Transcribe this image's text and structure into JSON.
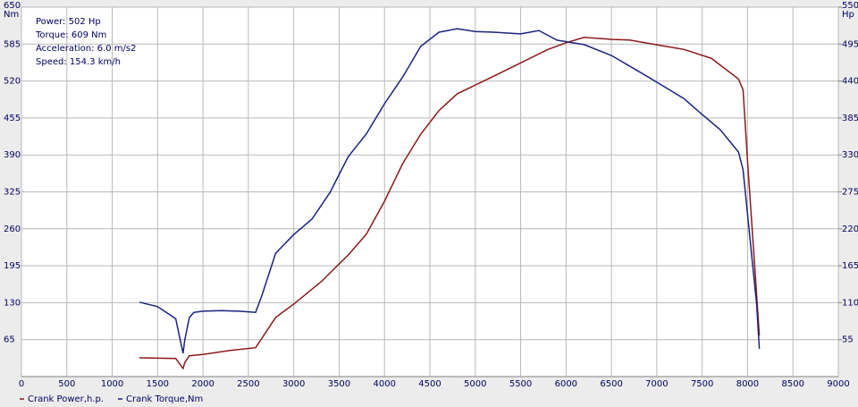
{
  "chart_data": {
    "type": "line",
    "annotations": [
      "Power: 502 Hp",
      "Torque: 609 Nm",
      "Acceleration: 6.0 m/s2",
      "Speed: 154.3 km/h"
    ],
    "y_unit": "Nm",
    "y2_unit": "Hp",
    "xlim": [
      0,
      9000
    ],
    "xticks": [
      0,
      500,
      1000,
      1500,
      2000,
      2500,
      3000,
      3500,
      4000,
      4500,
      5000,
      5500,
      6000,
      6500,
      7000,
      7500,
      8000,
      8500,
      9000
    ],
    "ylim": [
      0,
      650
    ],
    "yticks": [
      65,
      130,
      195,
      260,
      325,
      390,
      455,
      520,
      585,
      650
    ],
    "y2lim": [
      0,
      550
    ],
    "y2ticks": [
      55,
      110,
      165,
      220,
      275,
      330,
      385,
      440,
      495,
      550
    ],
    "grid": true,
    "legend": "bottom",
    "series": [
      {
        "name": "Crank Power,h.p.",
        "color": "#8b1a1a",
        "axis": "y2",
        "x": [
          1300,
          1700,
          1780,
          1800,
          1850,
          2000,
          2300,
          2580,
          2800,
          3000,
          3300,
          3600,
          3800,
          4000,
          4200,
          4400,
          4600,
          4800,
          5000,
          5200,
          5500,
          5800,
          6000,
          6200,
          6500,
          6700,
          7000,
          7300,
          7600,
          7900,
          7950,
          8000,
          8080,
          8130
        ],
        "values": [
          28,
          27,
          12,
          21,
          31,
          33,
          39,
          43,
          88,
          108,
          141,
          181,
          212,
          261,
          317,
          361,
          396,
          421,
          434,
          447,
          467,
          487,
          497,
          505,
          502,
          501,
          494,
          487,
          474,
          443,
          427,
          321,
          161,
          61
        ]
      },
      {
        "name": "Crank Torque,Nm",
        "color": "#1a237e",
        "axis": "y",
        "x": [
          1300,
          1500,
          1700,
          1780,
          1800,
          1850,
          1900,
          2000,
          2200,
          2400,
          2580,
          2650,
          2800,
          3000,
          3200,
          3400,
          3600,
          3800,
          4000,
          4200,
          4400,
          4600,
          4800,
          5000,
          5200,
          5500,
          5700,
          5900,
          6200,
          6500,
          6800,
          7000,
          7300,
          7500,
          7700,
          7900,
          7950,
          8050,
          8100,
          8130
        ],
        "values": [
          131,
          123,
          102,
          41,
          65,
          104,
          113,
          115,
          116,
          115,
          113,
          143,
          217,
          250,
          277,
          324,
          387,
          427,
          480,
          527,
          581,
          606,
          612,
          607,
          606,
          603,
          609,
          592,
          584,
          565,
          537,
          518,
          489,
          461,
          434,
          395,
          364,
          206,
          127,
          49
        ]
      }
    ]
  }
}
